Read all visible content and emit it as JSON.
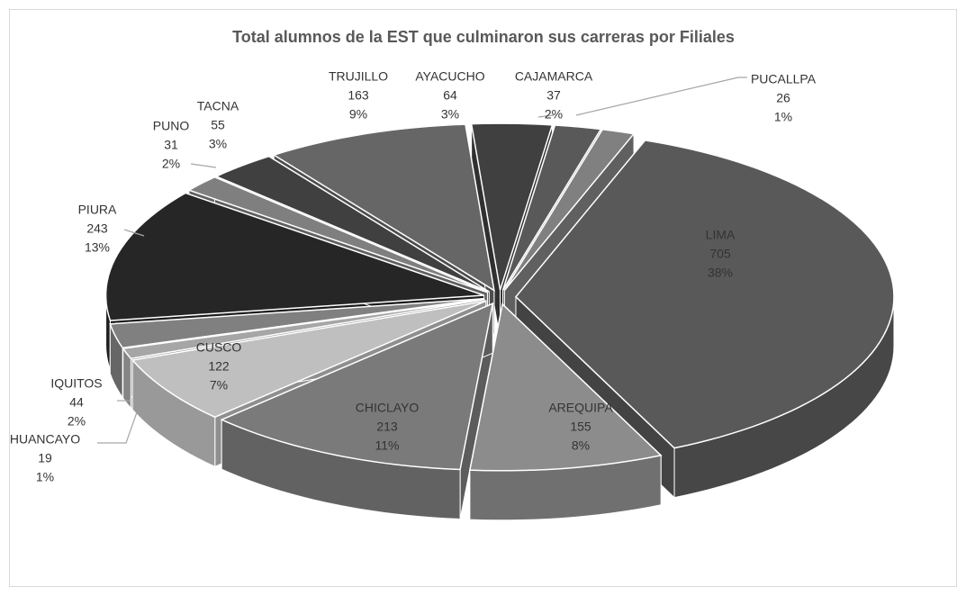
{
  "chart_data": {
    "type": "pie3d",
    "title": "Total alumnos de la EST que culminaron sus carreras por Filiales",
    "categories": [
      "LIMA",
      "AREQUIPA",
      "CHICLAYO",
      "CUSCO",
      "HUANCAYO",
      "IQUITOS",
      "PIURA",
      "PUNO",
      "TACNA",
      "TRUJILLO",
      "AYACUCHO",
      "CAJAMARCA",
      "PUCALLPA"
    ],
    "values": [
      705,
      155,
      213,
      122,
      19,
      44,
      243,
      31,
      55,
      163,
      64,
      37,
      26
    ],
    "percent_labels": [
      "38%",
      "8%",
      "11%",
      "7%",
      "1%",
      "2%",
      "13%",
      "2%",
      "3%",
      "9%",
      "3%",
      "2%",
      "1%"
    ],
    "colors": [
      "#595959",
      "#8c8c8c",
      "#7a7a7a",
      "#bfbfbf",
      "#a6a6a6",
      "#808080",
      "#262626",
      "#7f7f7f",
      "#404040",
      "#666666",
      "#404040",
      "#595959",
      "#808080"
    ]
  }
}
